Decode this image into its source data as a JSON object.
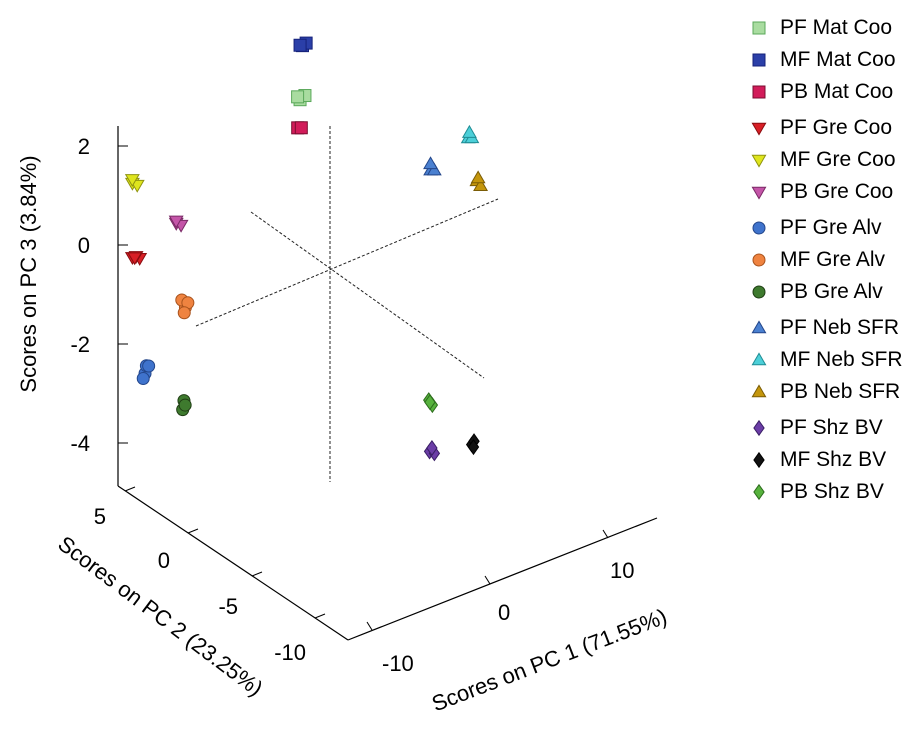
{
  "chart_data": {
    "type": "scatter",
    "title": "",
    "xlabel": "Scores on PC 1 (71.55%)",
    "ylabel": "Scores on PC 2 (23.25%)",
    "zlabel": "Scores on PC 3 (3.84%)",
    "x_ticks": [
      "-10",
      "0",
      "10"
    ],
    "y_ticks": [
      "5",
      "0",
      "-5",
      "-10"
    ],
    "z_ticks": [
      "2",
      "0",
      "-2",
      "-4"
    ],
    "legend_position": "right",
    "series": [
      {
        "name": "PF Mat Coo",
        "marker": "square",
        "color": "#a9dca0",
        "stroke": "#5aa85a",
        "points": [
          [
            -2.0,
            0.5,
            3.5
          ],
          [
            -1.8,
            0.3,
            3.6
          ],
          [
            -2.1,
            0.6,
            3.55
          ]
        ]
      },
      {
        "name": "MF Mat Coo",
        "marker": "square",
        "color": "#2b3fa8",
        "stroke": "#16227a",
        "points": [
          [
            -1.9,
            0.4,
            4.6
          ],
          [
            -1.7,
            0.3,
            4.65
          ],
          [
            -2.0,
            0.5,
            4.6
          ]
        ]
      },
      {
        "name": "PB Mat Coo",
        "marker": "square",
        "color": "#d21c5a",
        "stroke": "#7a0d30",
        "points": [
          [
            -2.2,
            0.5,
            2.95
          ],
          [
            -2.0,
            0.4,
            2.95
          ]
        ]
      },
      {
        "name": "PF Gre Coo",
        "marker": "triangle-down",
        "color": "#d81f26",
        "stroke": "#8a0d10",
        "points": [
          [
            -13.3,
            3.2,
            0.9
          ],
          [
            -12.9,
            3.0,
            0.88
          ],
          [
            -13.1,
            3.1,
            0.92
          ],
          [
            -13.0,
            3.3,
            0.85
          ]
        ]
      },
      {
        "name": "MF Gre Coo",
        "marker": "triangle-down",
        "color": "#dfe51d",
        "stroke": "#8f9410",
        "points": [
          [
            -13.3,
            3.2,
            2.4
          ],
          [
            -13.0,
            3.1,
            2.35
          ],
          [
            -13.2,
            3.3,
            2.45
          ]
        ]
      },
      {
        "name": "PB Gre Coo",
        "marker": "triangle-down",
        "color": "#c455a8",
        "stroke": "#7a2a66",
        "points": [
          [
            -9.8,
            3.0,
            1.3
          ],
          [
            -9.5,
            2.9,
            1.25
          ],
          [
            -9.7,
            3.1,
            1.32
          ]
        ]
      },
      {
        "name": "PF Gre Alv",
        "marker": "circle",
        "color": "#3f73cc",
        "stroke": "#23468a",
        "points": [
          [
            -13.2,
            2.3,
            -1.3
          ],
          [
            -13.3,
            2.1,
            -1.1
          ],
          [
            -13.0,
            2.2,
            -1.15
          ],
          [
            -13.3,
            2.35,
            -1.4
          ]
        ]
      },
      {
        "name": "MF Gre Alv",
        "marker": "circle",
        "color": "#ef8340",
        "stroke": "#a8521c",
        "points": [
          [
            -10.1,
            2.0,
            -0.2
          ],
          [
            -10.3,
            2.1,
            -0.05
          ],
          [
            -10.0,
            1.9,
            -0.1
          ],
          [
            -10.2,
            2.0,
            -0.3
          ]
        ]
      },
      {
        "name": "PB Gre Alv",
        "marker": "circle",
        "color": "#3e7a2e",
        "stroke": "#1f3d14",
        "points": [
          [
            -11.3,
            1.0,
            -1.8
          ],
          [
            -11.3,
            1.1,
            -2.0
          ],
          [
            -11.2,
            1.0,
            -1.9
          ]
        ]
      },
      {
        "name": "PF Neb SFR",
        "marker": "triangle-up",
        "color": "#4a80d0",
        "stroke": "#23468a",
        "points": [
          [
            5.3,
            -3.0,
            2.0
          ],
          [
            5.5,
            -3.1,
            2.0
          ],
          [
            5.4,
            -2.9,
            2.1
          ]
        ]
      },
      {
        "name": "MF Neb SFR",
        "marker": "triangle-up",
        "color": "#4ccfd8",
        "stroke": "#1f8c94",
        "points": [
          [
            8.7,
            -2.8,
            2.3
          ],
          [
            8.9,
            -2.9,
            2.3
          ],
          [
            8.8,
            -2.8,
            2.4
          ]
        ]
      },
      {
        "name": "PB Neb SFR",
        "marker": "triangle-up",
        "color": "#c4960c",
        "stroke": "#7a5c06",
        "points": [
          [
            8.9,
            -3.3,
            1.5
          ],
          [
            9.1,
            -3.4,
            1.4
          ],
          [
            9.0,
            -3.3,
            1.55
          ]
        ]
      },
      {
        "name": "PF Shz BV",
        "marker": "diamond",
        "color": "#6b3da6",
        "stroke": "#3a1f66",
        "points": [
          [
            6.5,
            -1.8,
            -4.0
          ],
          [
            6.8,
            -1.9,
            -4.05
          ],
          [
            6.7,
            -1.8,
            -3.95
          ]
        ]
      },
      {
        "name": "MF Shz BV",
        "marker": "diamond",
        "color": "#111111",
        "stroke": "#000000",
        "points": [
          [
            9.1,
            -2.7,
            -3.95
          ],
          [
            9.3,
            -2.7,
            -3.9
          ],
          [
            9.2,
            -2.75,
            -4.0
          ]
        ]
      },
      {
        "name": "PB Shz BV",
        "marker": "diamond",
        "color": "#57b23d",
        "stroke": "#2c6b1c",
        "points": [
          [
            6.0,
            -2.2,
            -2.85
          ],
          [
            6.2,
            -2.3,
            -2.95
          ],
          [
            6.1,
            -2.2,
            -2.9
          ]
        ]
      }
    ]
  }
}
